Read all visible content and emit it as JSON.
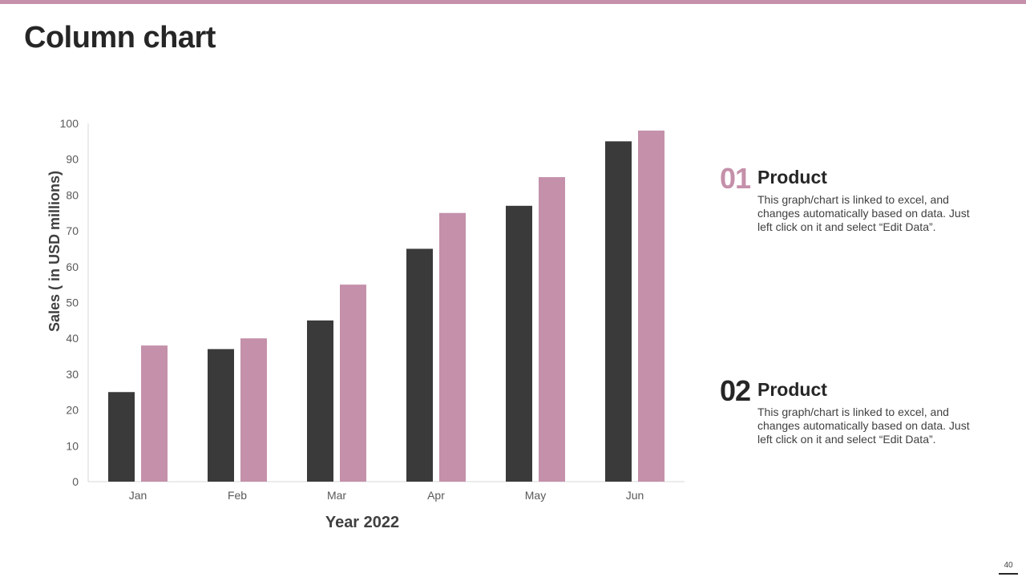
{
  "title": "Column chart",
  "colors": {
    "accent": "#c490aa",
    "dark": "#3a3a3a",
    "text": "#262626"
  },
  "chart_data": {
    "type": "bar",
    "categories": [
      "Jan",
      "Feb",
      "Mar",
      "Apr",
      "May",
      "Jun"
    ],
    "series": [
      {
        "name": "Product 01",
        "color": "#3a3a3a",
        "values": [
          25,
          37,
          45,
          65,
          77,
          95
        ]
      },
      {
        "name": "Product 02",
        "color": "#c490aa",
        "values": [
          38,
          40,
          55,
          75,
          85,
          98
        ]
      }
    ],
    "yticks": [
      0,
      10,
      20,
      30,
      40,
      50,
      60,
      70,
      80,
      90,
      100
    ],
    "ylim": [
      0,
      100
    ],
    "xlabel": "Year 2022",
    "ylabel": "Sales  ( in USD millions)",
    "grid": false
  },
  "info": [
    {
      "number": "01",
      "title": "Product",
      "description": "This graph/chart is linked to excel, and changes automatically based on data. Just left click on it and select “Edit Data”."
    },
    {
      "number": "02",
      "title": "Product",
      "description": "This graph/chart is linked to excel, and changes automatically based on data. Just left click on it and select “Edit Data”."
    }
  ],
  "page_number": "40"
}
